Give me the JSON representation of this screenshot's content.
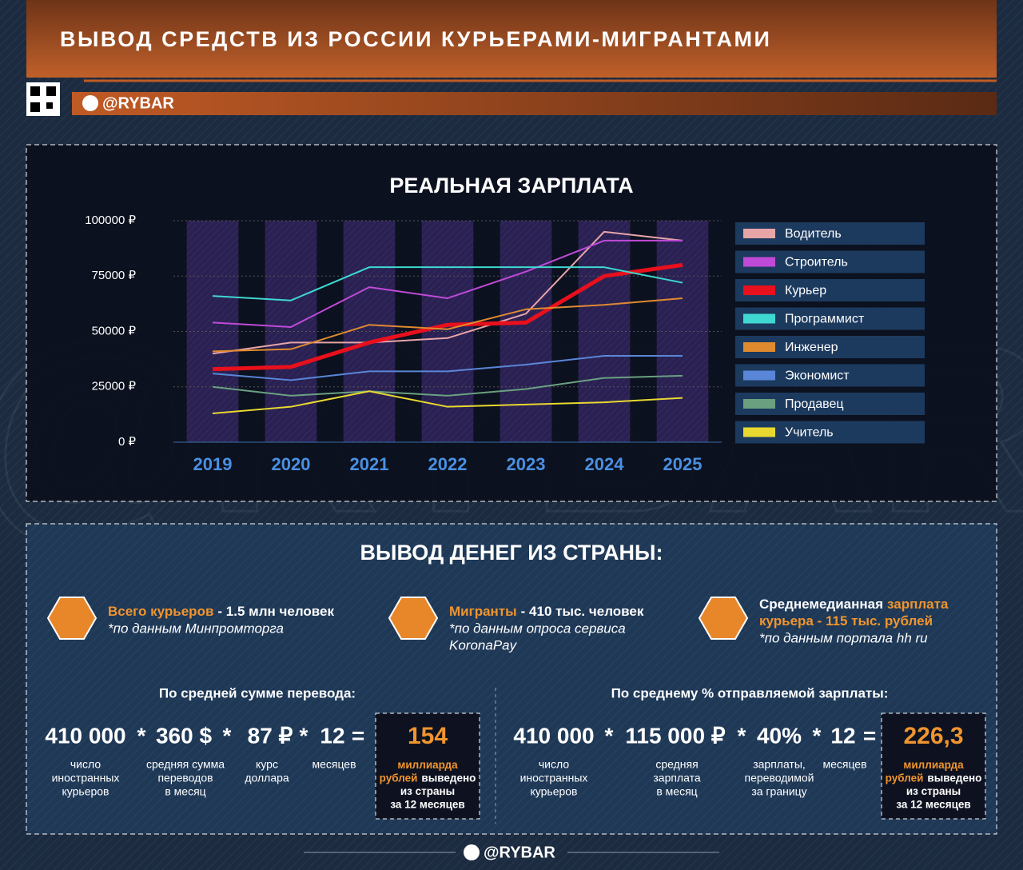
{
  "header": {
    "title": "ВЫВОД СРЕДСТВ ИЗ РОССИИ КУРЬЕРАМИ-МИГРАНТАМИ",
    "handle": "@RYBAR"
  },
  "watermark": "@RYBAR",
  "chart_data": {
    "type": "line",
    "title": "РЕАЛЬНАЯ ЗАРПЛАТА",
    "categories": [
      "2019",
      "2020",
      "2021",
      "2022",
      "2023",
      "2024",
      "2025"
    ],
    "series": [
      {
        "name": "Водитель",
        "color": "#e8a5a8",
        "line_width": 2,
        "values": [
          40000,
          45000,
          45000,
          47000,
          58000,
          95000,
          91000
        ]
      },
      {
        "name": "Строитель",
        "color": "#c04ad8",
        "line_width": 2,
        "values": [
          54000,
          52000,
          70000,
          65000,
          77000,
          91000,
          91000
        ]
      },
      {
        "name": "Курьер",
        "color": "#e8101c",
        "line_width": 5,
        "values": [
          33000,
          34000,
          45000,
          53000,
          54000,
          75000,
          80000
        ]
      },
      {
        "name": "Программист",
        "color": "#3ed8d0",
        "line_width": 2,
        "values": [
          66000,
          64000,
          79000,
          79000,
          79000,
          79000,
          72000
        ]
      },
      {
        "name": "Инженер",
        "color": "#e08a30",
        "line_width": 2,
        "values": [
          41000,
          42000,
          53000,
          51000,
          60000,
          62000,
          65000
        ]
      },
      {
        "name": "Экономист",
        "color": "#5a86d8",
        "line_width": 2,
        "values": [
          31000,
          28000,
          32000,
          32000,
          35000,
          39000,
          39000
        ]
      },
      {
        "name": "Продавец",
        "color": "#6aa080",
        "line_width": 2,
        "values": [
          25000,
          21000,
          23000,
          21000,
          24000,
          29000,
          30000
        ]
      },
      {
        "name": "Учитель",
        "color": "#e8d830",
        "line_width": 2,
        "values": [
          13000,
          16000,
          23000,
          16000,
          17000,
          18000,
          20000
        ]
      }
    ],
    "ylim": [
      0,
      100000
    ],
    "yticks": [
      {
        "value": 0,
        "label": "0 ₽"
      },
      {
        "value": 25000,
        "label": "25000 ₽"
      },
      {
        "value": 50000,
        "label": "50000 ₽"
      },
      {
        "value": 75000,
        "label": "75000 ₽"
      },
      {
        "value": 100000,
        "label": "100000 ₽"
      }
    ],
    "grid": true
  },
  "info": {
    "title": "ВЫВОД ДЕНЕГ ИЗ СТРАНЫ:",
    "items": [
      {
        "lines": [
          [
            {
              "text": "Всего курьеров",
              "highlight": true
            },
            {
              "text": "- 1.5 млн человек",
              "highlight": false
            }
          ]
        ],
        "note": [
          "*по данным Минпромторга"
        ]
      },
      {
        "lines": [
          [
            {
              "text": "Мигранты",
              "highlight": true
            },
            {
              "text": "- 410 тыс. человек",
              "highlight": false
            }
          ]
        ],
        "note": [
          "*по данным опроса сервиса",
          "KoronaPay"
        ]
      },
      {
        "lines": [
          [
            {
              "text": "Среднемедианная",
              "highlight": false
            },
            {
              "text": "зарплата",
              "highlight": true
            }
          ],
          [
            {
              "text": "курьера - 115 тыс. рублей",
              "highlight": true
            }
          ]
        ],
        "note": [
          "*по данным портала hh ru"
        ]
      }
    ]
  },
  "calculations": [
    {
      "title": "По средней сумме перевода:",
      "terms": [
        {
          "value": "410 000",
          "caption": [
            "число",
            "иностранных",
            "курьеров"
          ]
        },
        {
          "value": "360 $",
          "caption": [
            "средняя сумма",
            "переводов",
            "в месяц"
          ]
        },
        {
          "value": "87 ₽",
          "caption": [
            "курс",
            "доллара"
          ]
        },
        {
          "value": "12",
          "caption": [
            "месяцев"
          ]
        }
      ],
      "operators": [
        "*",
        "*",
        "*",
        "="
      ],
      "result": {
        "value": "154",
        "caption": [
          [
            {
              "text": "миллиарда",
              "highlight": true
            }
          ],
          [
            {
              "text": "рублей",
              "highlight": true
            },
            {
              "text": "выведено",
              "highlight": false
            }
          ],
          [
            {
              "text": "из страны",
              "highlight": false
            }
          ],
          [
            {
              "text": "за 12 месяцев",
              "highlight": false
            }
          ]
        ]
      }
    },
    {
      "title": "По среднему % отправляемой зарплаты:",
      "terms": [
        {
          "value": "410 000",
          "caption": [
            "число",
            "иностранных",
            "курьеров"
          ]
        },
        {
          "value": "115 000 ₽",
          "caption": [
            "средняя",
            "зарплата",
            "в месяц"
          ]
        },
        {
          "value": "40%",
          "caption": [
            "зарплаты,",
            "переводимой",
            "за границу"
          ]
        },
        {
          "value": "12",
          "caption": [
            "месяцев"
          ]
        }
      ],
      "operators": [
        "*",
        "*",
        "*",
        "="
      ],
      "result": {
        "value": "226,3",
        "caption": [
          [
            {
              "text": "миллиарда",
              "highlight": true
            }
          ],
          [
            {
              "text": "рублей",
              "highlight": true
            },
            {
              "text": "выведено",
              "highlight": false
            }
          ],
          [
            {
              "text": "из страны",
              "highlight": false
            }
          ],
          [
            {
              "text": "за 12 месяцев",
              "highlight": false
            }
          ]
        ]
      }
    }
  ],
  "footer": {
    "handle": "@RYBAR"
  }
}
